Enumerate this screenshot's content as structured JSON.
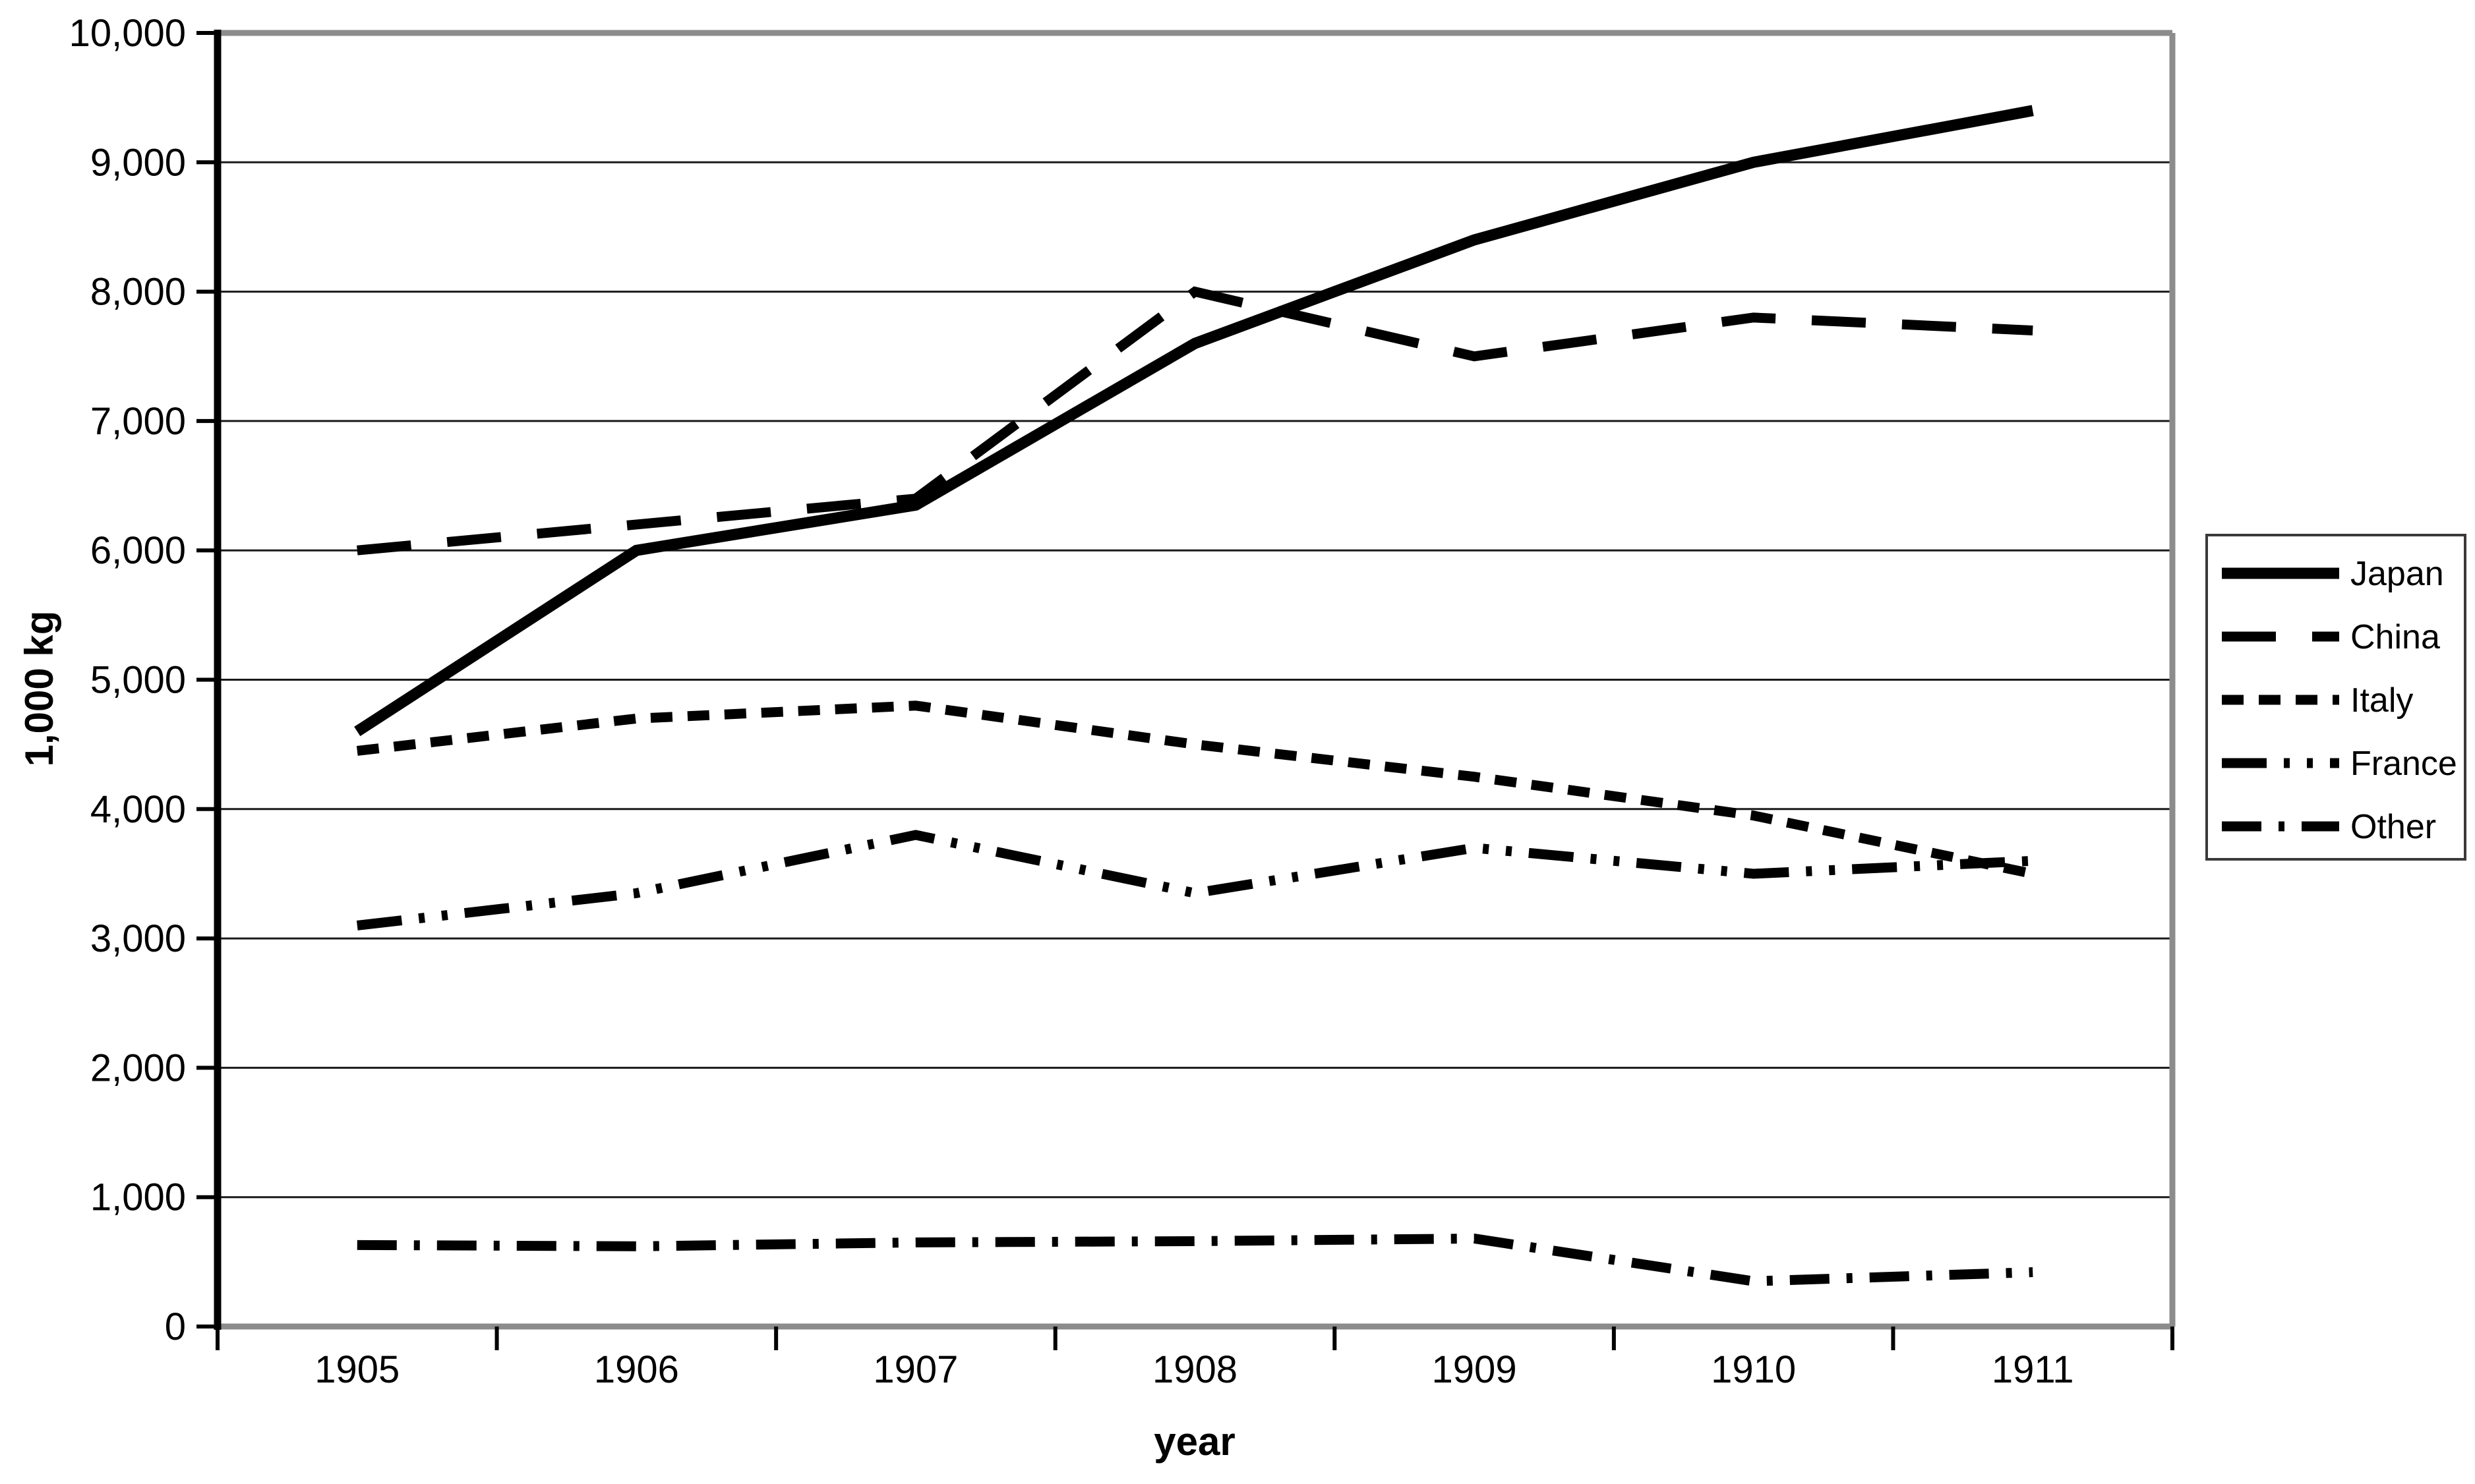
{
  "chart_data": {
    "type": "line",
    "title": "",
    "xlabel": "year",
    "ylabel": "1,000 kg",
    "ylim": [
      0,
      10000
    ],
    "ytick_step": 1000,
    "ytick_labels": [
      "0",
      "1,000",
      "2,000",
      "3,000",
      "4,000",
      "5,000",
      "6,000",
      "7,000",
      "8,000",
      "9,000",
      "10,000"
    ],
    "grid": true,
    "legend_position": "right",
    "categories": [
      "1905",
      "1906",
      "1907",
      "1908",
      "1909",
      "1910",
      "1911"
    ],
    "series": [
      {
        "name": "Japan",
        "line_style": "solid",
        "values": [
          4600,
          6000,
          6350,
          7600,
          8400,
          9000,
          9400
        ]
      },
      {
        "name": "China",
        "line_style": "long-dash",
        "values": [
          6000,
          6200,
          6400,
          8000,
          7500,
          7800,
          7700
        ]
      },
      {
        "name": "Italy",
        "line_style": "short-dash",
        "values": [
          4450,
          4700,
          4800,
          4500,
          4250,
          3950,
          3500
        ]
      },
      {
        "name": "France",
        "line_style": "dash-dot-dot",
        "values": [
          3100,
          3350,
          3800,
          3350,
          3700,
          3500,
          3600
        ]
      },
      {
        "name": "Other",
        "line_style": "dash-dot",
        "values": [
          630,
          620,
          650,
          660,
          680,
          350,
          420
        ]
      }
    ],
    "line_color": "#000000",
    "axis_frame_color": "#8c8c8c"
  }
}
